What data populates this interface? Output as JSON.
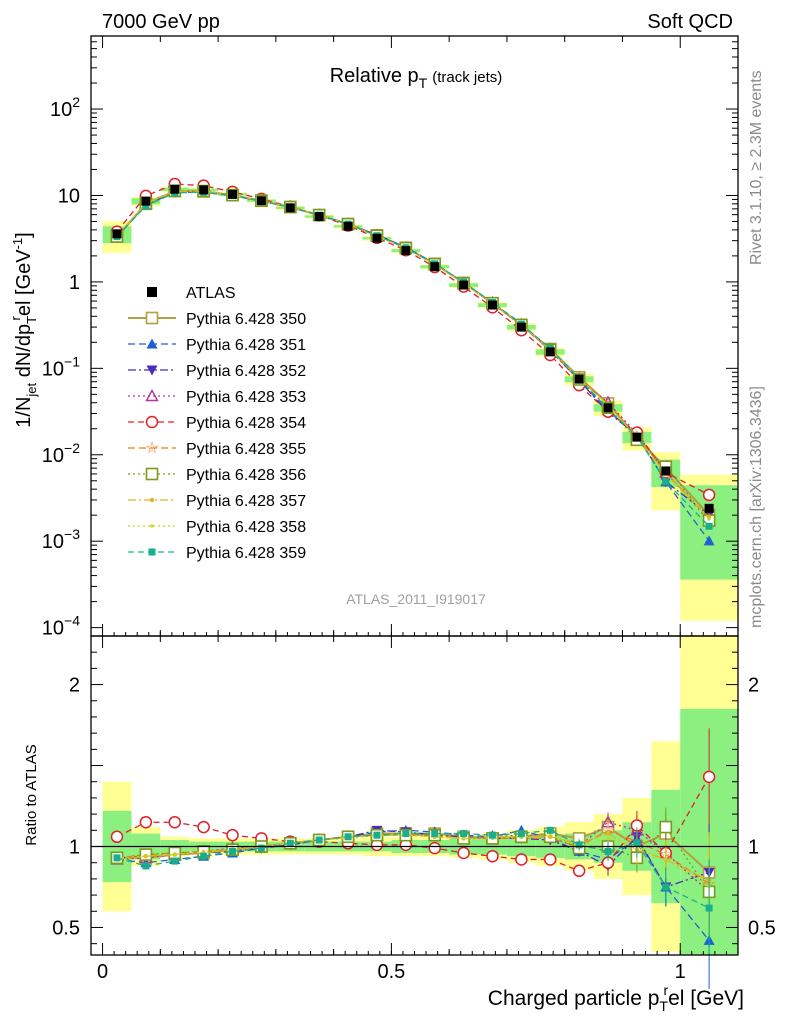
{
  "header": {
    "left": "7000 GeV pp",
    "right": "Soft QCD"
  },
  "side": {
    "rivet": "Rivet 3.1.10, ≥ 2.3M events",
    "mcplots": "mcplots.cern.ch [arXiv:1306.3436]"
  },
  "chart_data": {
    "type": "line",
    "title": "Relative p",
    "title_sub": "T",
    "title_note": "(track jets)",
    "analysis_label": "ATLAS_2011_I919017",
    "xlabel": "Charged particle p",
    "xlabel_sub": "T",
    "xlabel_sup": "r",
    "xlabel_tail": "el [GeV]",
    "ylabel": "1/N",
    "ylabel_sub1": "jet",
    "ylabel_mid": " dN/dp",
    "ylabel_sub2": "T",
    "ylabel_sup2": "r",
    "ylabel_tail": "el [GeV",
    "ylabel_sup3": "-1",
    "ylabel_close": "]",
    "ratio_ylabel": "Ratio to ATLAS",
    "xlim": [
      -0.02,
      1.1
    ],
    "ylim_top": [
      8e-05,
      700
    ],
    "ylim_ratio": [
      0.33,
      2.3
    ],
    "y_scale_top": "log",
    "legend_position": "left-middle",
    "x_ticks": [
      {
        "v": 0,
        "label": "0"
      },
      {
        "v": 0.5,
        "label": "0.5"
      },
      {
        "v": 1.0,
        "label": "1"
      }
    ],
    "y_ticks_top": [
      {
        "v": 0.0001,
        "base": "10",
        "exp": "−4"
      },
      {
        "v": 0.001,
        "base": "10",
        "exp": "−3"
      },
      {
        "v": 0.01,
        "base": "10",
        "exp": "−2"
      },
      {
        "v": 0.1,
        "base": "10",
        "exp": "−1"
      },
      {
        "v": 1,
        "base": "1",
        "exp": ""
      },
      {
        "v": 10,
        "base": "10",
        "exp": ""
      },
      {
        "v": 100,
        "base": "10",
        "exp": "2"
      }
    ],
    "y_ticks_ratio": [
      {
        "v": 0.5,
        "label": "0.5"
      },
      {
        "v": 1,
        "label": "1"
      },
      {
        "v": 2,
        "label": "2"
      }
    ],
    "x": [
      0.025,
      0.075,
      0.125,
      0.175,
      0.225,
      0.275,
      0.325,
      0.375,
      0.425,
      0.475,
      0.525,
      0.575,
      0.625,
      0.675,
      0.725,
      0.775,
      0.825,
      0.875,
      0.925,
      0.975,
      1.05
    ],
    "bin_edges": [
      0,
      0.05,
      0.1,
      0.15,
      0.2,
      0.25,
      0.3,
      0.35,
      0.4,
      0.45,
      0.5,
      0.55,
      0.6,
      0.65,
      0.7,
      0.75,
      0.8,
      0.85,
      0.9,
      0.95,
      1.0,
      1.1
    ],
    "data": {
      "name": "ATLAS",
      "values": [
        3.6,
        8.6,
        11.8,
        11.6,
        10.3,
        8.7,
        7.2,
        5.7,
        4.4,
        3.2,
        2.3,
        1.5,
        0.92,
        0.54,
        0.3,
        0.155,
        0.075,
        0.035,
        0.016,
        0.0065,
        0.0024
      ],
      "band_stat": [
        0.22,
        0.08,
        0.04,
        0.03,
        0.03,
        0.03,
        0.03,
        0.03,
        0.03,
        0.03,
        0.04,
        0.04,
        0.05,
        0.05,
        0.06,
        0.07,
        0.08,
        0.1,
        0.15,
        0.35,
        0.85
      ],
      "band_tot": [
        0.4,
        0.12,
        0.06,
        0.05,
        0.05,
        0.05,
        0.05,
        0.05,
        0.05,
        0.06,
        0.06,
        0.06,
        0.07,
        0.08,
        0.1,
        0.12,
        0.15,
        0.2,
        0.3,
        0.65,
        1.45
      ]
    },
    "series": [
      {
        "name": "Pythia 6.428 350",
        "color": "#b0a040",
        "marker": "square-open",
        "dash": "",
        "width": 2,
        "ratio": [
          0.93,
          0.93,
          0.95,
          0.96,
          0.98,
          1.0,
          1.02,
          1.04,
          1.06,
          1.08,
          1.08,
          1.08,
          1.06,
          1.05,
          1.06,
          1.08,
          1.05,
          1.12,
          1.0,
          1.08,
          0.84
        ]
      },
      {
        "name": "Pythia 6.428 351",
        "color": "#1f5fd6",
        "marker": "triangle-up",
        "dash": "7,4",
        "width": 1.3,
        "ratio": [
          0.92,
          0.9,
          0.92,
          0.94,
          0.96,
          0.99,
          1.01,
          1.04,
          1.06,
          1.09,
          1.1,
          1.09,
          1.07,
          1.06,
          1.1,
          1.05,
          0.97,
          0.92,
          1.05,
          0.75,
          0.42
        ]
      },
      {
        "name": "Pythia 6.428 352",
        "color": "#4b2bb8",
        "marker": "triangle-down",
        "dash": "8,3,2,3",
        "width": 1.3,
        "ratio": [
          0.93,
          0.94,
          0.95,
          0.96,
          0.97,
          0.99,
          1.01,
          1.04,
          1.06,
          1.1,
          1.09,
          1.07,
          1.06,
          1.05,
          1.05,
          1.04,
          0.97,
          0.88,
          1.06,
          0.75,
          0.84
        ]
      },
      {
        "name": "Pythia 6.428 353",
        "color": "#b0349f",
        "marker": "triangle-open",
        "dash": "2,3",
        "width": 1.3,
        "ratio": [
          0.92,
          0.93,
          0.95,
          0.97,
          0.99,
          1.0,
          1.02,
          1.04,
          1.06,
          1.07,
          1.07,
          1.07,
          1.05,
          1.06,
          1.07,
          1.07,
          1.0,
          1.15,
          1.1,
          0.96,
          0.72
        ]
      },
      {
        "name": "Pythia 6.428 354",
        "color": "#e0202a",
        "marker": "circle-open",
        "dash": "6,4",
        "width": 1.3,
        "ratio": [
          1.06,
          1.15,
          1.15,
          1.12,
          1.07,
          1.05,
          1.03,
          1.03,
          1.02,
          1.01,
          1.01,
          0.99,
          0.96,
          0.94,
          0.92,
          0.92,
          0.85,
          0.9,
          1.13,
          0.96,
          1.43
        ]
      },
      {
        "name": "Pythia 6.428 355",
        "color": "#f07a18",
        "marker": "star",
        "dash": "7,4",
        "width": 1.3,
        "ratio": [
          0.93,
          0.95,
          0.96,
          0.97,
          0.98,
          1.0,
          1.02,
          1.04,
          1.06,
          1.07,
          1.07,
          1.07,
          1.05,
          1.05,
          1.05,
          1.05,
          1.0,
          1.1,
          1.03,
          0.95,
          0.77
        ]
      },
      {
        "name": "Pythia 6.428 356",
        "color": "#7b9b18",
        "marker": "square-open",
        "dash": "2,3",
        "width": 1.3,
        "ratio": [
          0.93,
          0.95,
          0.96,
          0.97,
          0.98,
          1.0,
          1.02,
          1.04,
          1.06,
          1.07,
          1.07,
          1.07,
          1.05,
          1.05,
          1.06,
          1.06,
          0.99,
          1.0,
          0.93,
          1.12,
          0.72
        ]
      },
      {
        "name": "Pythia 6.428 357",
        "color": "#e0b418",
        "marker": "dot",
        "dash": "8,3,2,3",
        "width": 1.3,
        "ratio": [
          0.92,
          0.94,
          0.95,
          0.96,
          0.98,
          1.0,
          1.02,
          1.04,
          1.06,
          1.07,
          1.07,
          1.06,
          1.05,
          1.06,
          1.06,
          1.06,
          1.02,
          1.08,
          0.98,
          0.92,
          0.79
        ]
      },
      {
        "name": "Pythia 6.428 358",
        "color": "#c9d21e",
        "marker": "dot-small",
        "dash": "2,3",
        "width": 1.3,
        "ratio": [
          0.93,
          0.94,
          0.95,
          0.97,
          0.98,
          1.0,
          1.02,
          1.04,
          1.05,
          1.07,
          1.07,
          1.06,
          1.05,
          1.05,
          1.06,
          1.07,
          1.0,
          1.05,
          1.0,
          0.92,
          0.75
        ]
      },
      {
        "name": "Pythia 6.428 359",
        "color": "#1aaf8c",
        "marker": "square",
        "dash": "6,4",
        "width": 1.3,
        "ratio": [
          0.93,
          0.88,
          0.91,
          0.94,
          0.97,
          0.99,
          1.02,
          1.04,
          1.06,
          1.07,
          1.08,
          1.08,
          1.08,
          1.07,
          1.08,
          1.1,
          1.01,
          0.97,
          1.02,
          0.75,
          0.62
        ]
      }
    ]
  }
}
